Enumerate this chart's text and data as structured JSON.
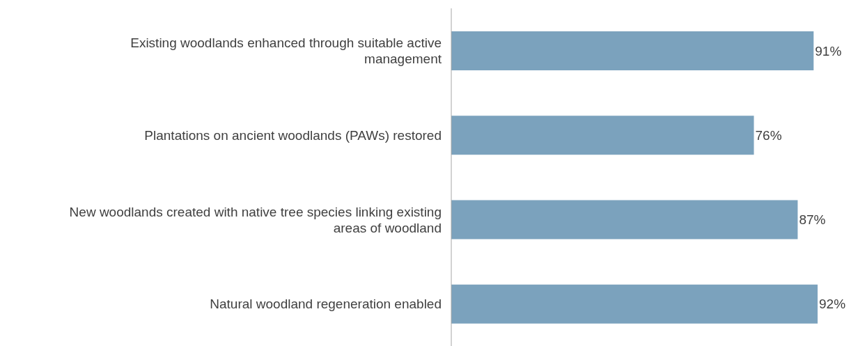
{
  "chart_data": {
    "type": "bar",
    "orientation": "horizontal",
    "categories": [
      "Existing woodlands enhanced through suitable active\nmanagement",
      "Plantations on ancient woodlands (PAWs) restored",
      "New woodlands created with native tree species linking existing\nareas of woodland",
      "Natural woodland regeneration enabled"
    ],
    "values": [
      91,
      76,
      87,
      92
    ],
    "value_labels": [
      "91%",
      "76%",
      "87%",
      "92%"
    ],
    "color": "#7ba2bd",
    "grid": false,
    "legend": false
  }
}
